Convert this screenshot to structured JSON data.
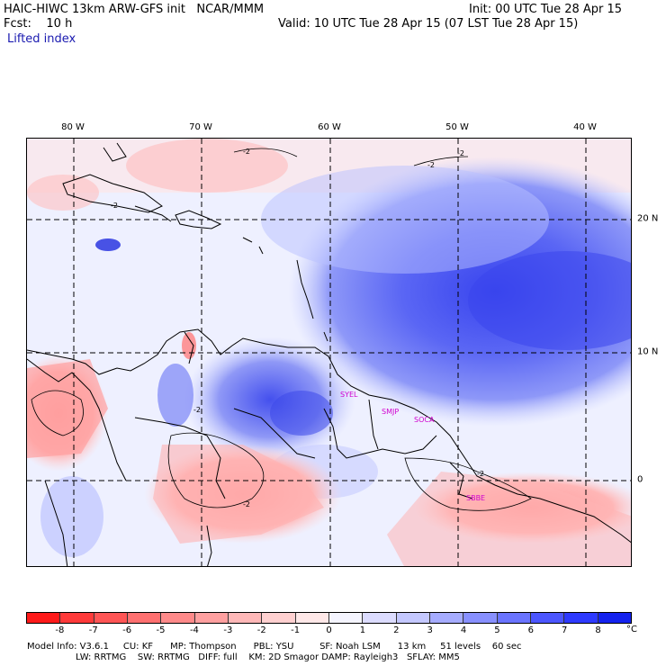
{
  "header": {
    "title": "HAIC-HIWC 13km ARW-GFS init   NCAR/MMM",
    "init": "Init: 00 UTC Tue 28 Apr 15",
    "fcst": "Fcst:    10 h",
    "valid": "Valid: 10 UTC Tue 28 Apr 15 (07 LST Tue 28 Apr 15)",
    "field": "Lifted index"
  },
  "map": {
    "lon_labels": [
      "80 W",
      "70 W",
      "60 W",
      "50 W",
      "40 W"
    ],
    "lat_labels": [
      "20 N",
      "10 N",
      "0"
    ],
    "contour_labels": [
      "-2",
      "-2",
      "-2",
      "-2",
      "-2",
      "-2",
      "-2"
    ],
    "stations": [
      "SYEL",
      "SMJP",
      "SOCA",
      "SBBE"
    ]
  },
  "colorbar": {
    "ticks": [
      "-8",
      "-7",
      "-6",
      "-5",
      "-4",
      "-3",
      "-2",
      "-1",
      "0",
      "1",
      "2",
      "3",
      "4",
      "5",
      "6",
      "7",
      "8"
    ],
    "unit": "°C",
    "colors": [
      "#ff1a1a",
      "#ff3a3a",
      "#ff5555",
      "#ff7070",
      "#ff8a8a",
      "#ffa0a0",
      "#ffb8b8",
      "#ffd0d0",
      "#ffe8e8",
      "#f5f5ff",
      "#dcdcff",
      "#c4c8ff",
      "#a6acff",
      "#8890ff",
      "#6a74ff",
      "#4c56ff",
      "#2e3aff",
      "#1422ee"
    ]
  },
  "footer": {
    "line1": "Model Info: V3.6.1     CU: KF      MP: Thompson      PBL: YSU         SF: Noah LSM      13 km     51 levels    60 sec",
    "line2": "                 LW: RRTMG    SW: RRTMG   DIFF: full    KM: 2D Smagor DAMP: Rayleigh3   SFLAY: MM5"
  }
}
